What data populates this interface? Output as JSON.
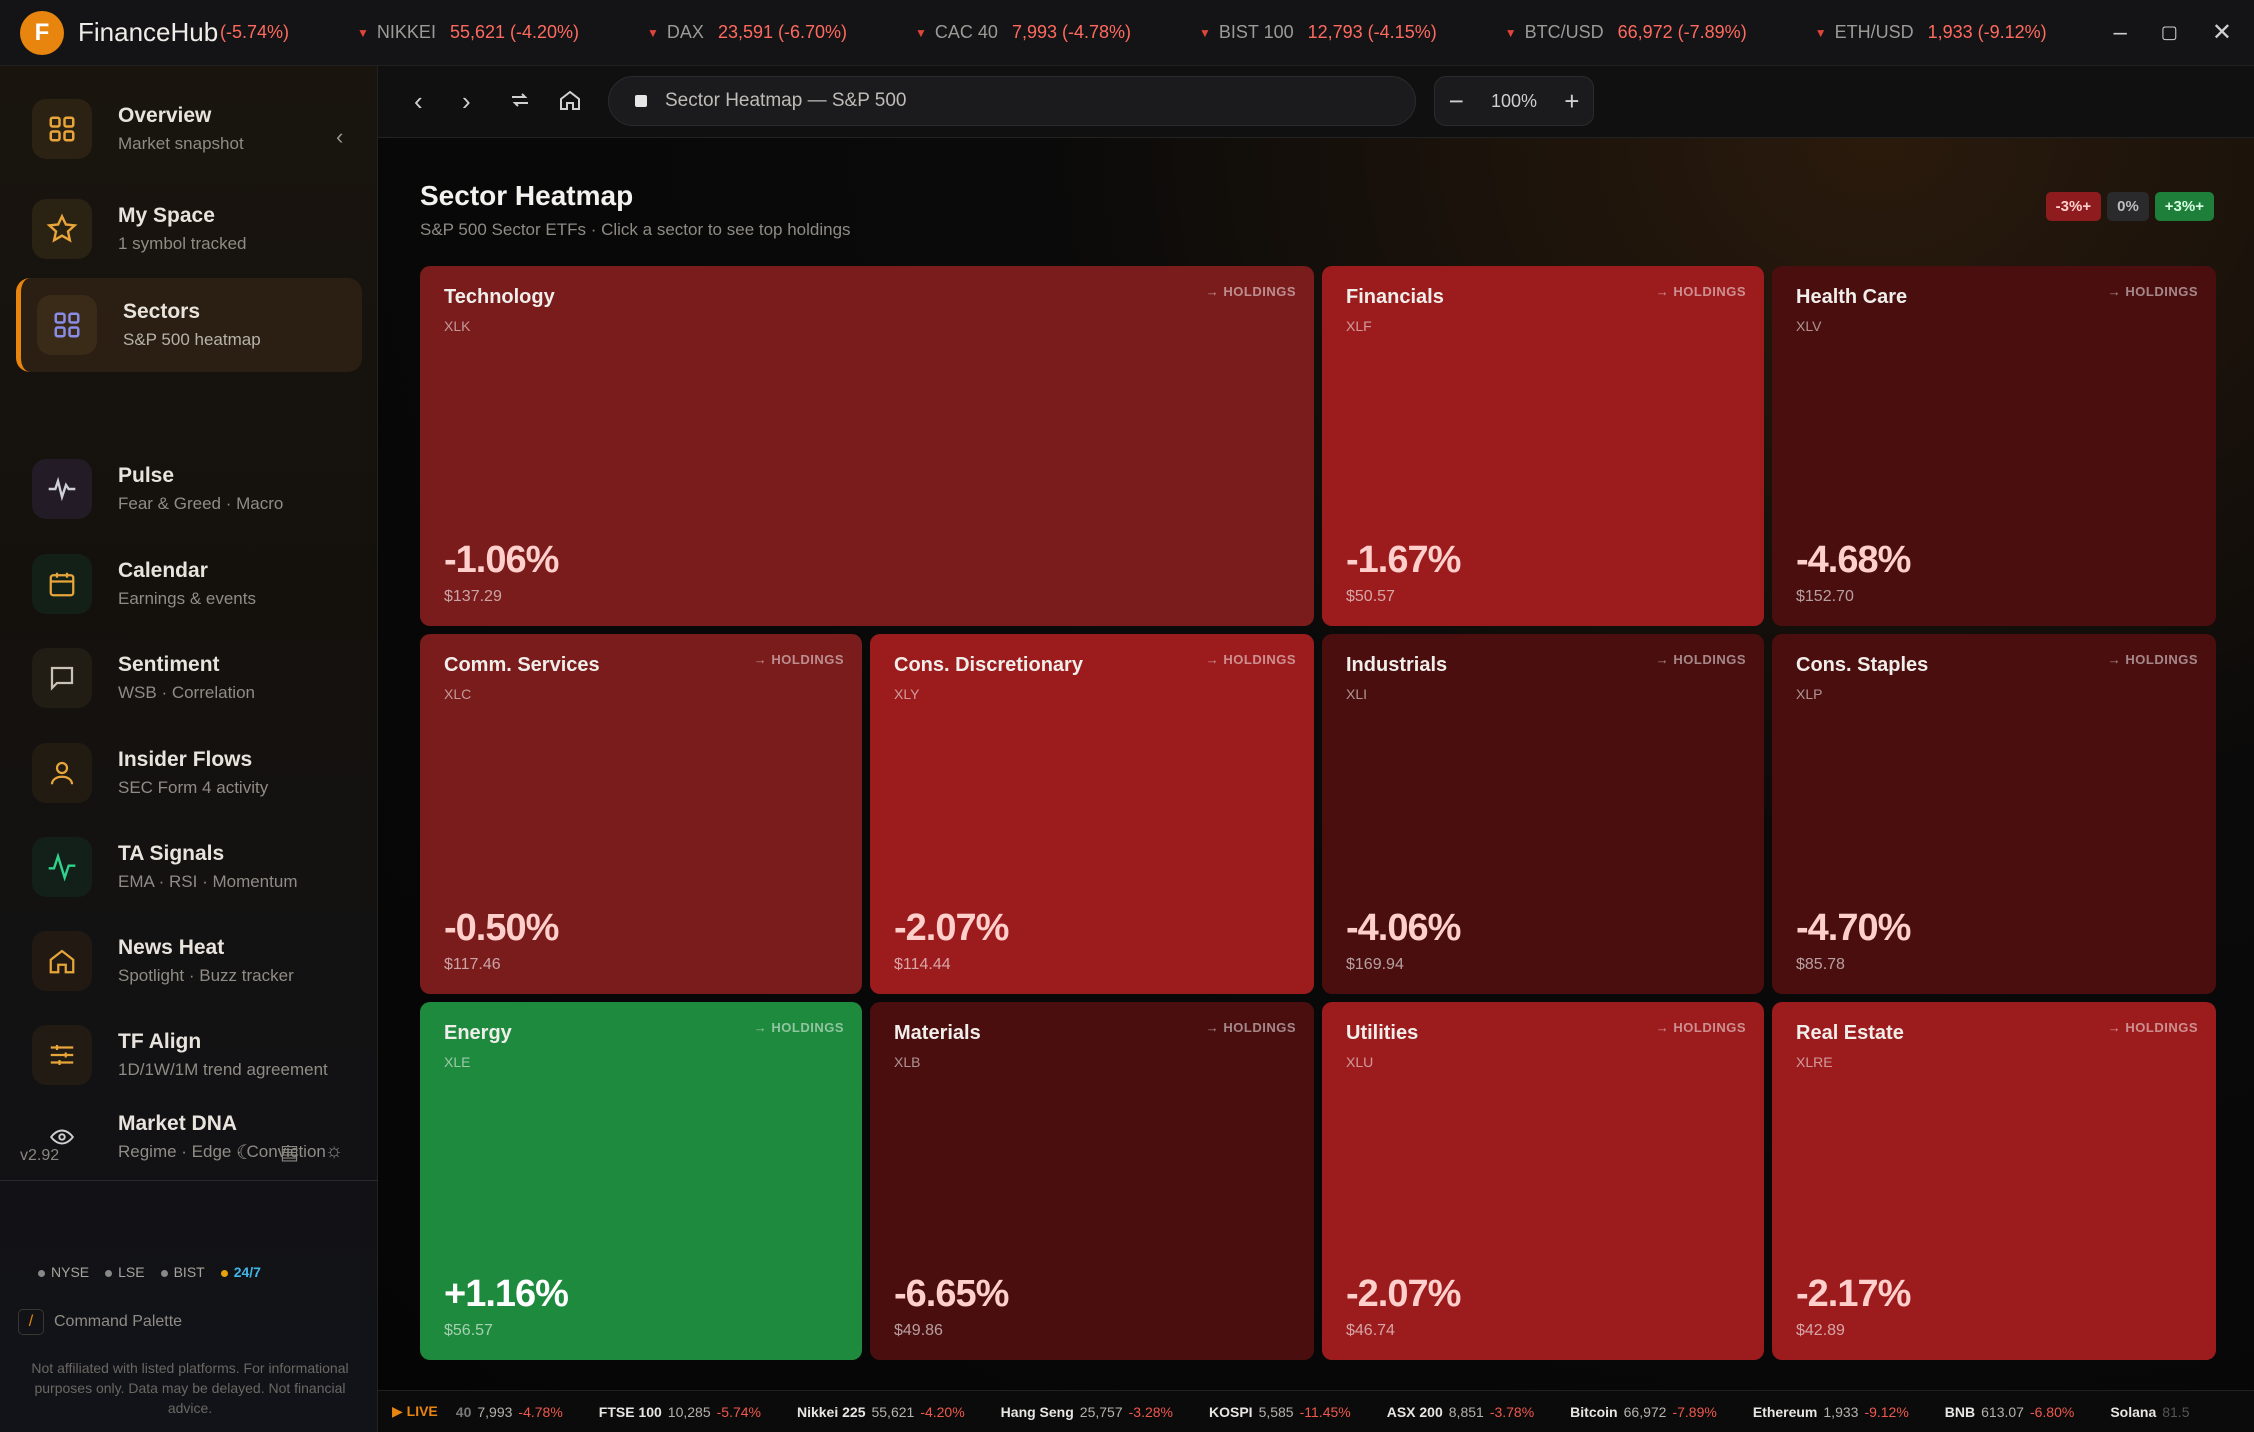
{
  "app": {
    "logo_letter": "F",
    "name": "FinanceHub"
  },
  "top_ticker": {
    "first_partial": "(-5.74%)",
    "items": [
      {
        "symbol": "NIKKEI",
        "value": "55,621 (-4.20%)"
      },
      {
        "symbol": "DAX",
        "value": "23,591 (-6.70%)"
      },
      {
        "symbol": "CAC 40",
        "value": "7,993 (-4.78%)"
      },
      {
        "symbol": "BIST 100",
        "value": "12,793 (-4.15%)"
      },
      {
        "symbol": "BTC/USD",
        "value": "66,972 (-7.89%)"
      },
      {
        "symbol": "ETH/USD",
        "value": "1,933 (-9.12%)"
      }
    ]
  },
  "sidebar": {
    "items": [
      {
        "title": "Overview",
        "sub": "Market snapshot"
      },
      {
        "title": "My Space",
        "sub": "1 symbol tracked"
      },
      {
        "title": "Sectors",
        "sub": "S&P 500 heatmap"
      },
      {
        "title": "Pulse",
        "sub": "Fear & Greed · Macro"
      },
      {
        "title": "Calendar",
        "sub": "Earnings & events"
      },
      {
        "title": "Sentiment",
        "sub": "WSB · Correlation"
      },
      {
        "title": "Insider Flows",
        "sub": "SEC Form 4 activity"
      },
      {
        "title": "TA Signals",
        "sub": "EMA · RSI · Momentum"
      },
      {
        "title": "News Heat",
        "sub": "Spotlight · Buzz tracker"
      },
      {
        "title": "TF Align",
        "sub": "1D/1W/1M trend agreement"
      },
      {
        "title": "Market DNA",
        "sub": "Regime · Edge · Conviction"
      }
    ],
    "version": "v2.92",
    "markets": [
      "NYSE",
      "LSE",
      "BIST",
      "24/7"
    ],
    "command_palette_key": "/",
    "command_palette_label": "Command Palette",
    "disclaimer": "Not affiliated with listed platforms. For informational purposes only. Data may be delayed. Not financial advice."
  },
  "toolbar": {
    "address": "Sector Heatmap — S&P 500",
    "zoom": "100%"
  },
  "page": {
    "title": "Sector Heatmap",
    "subtitle": "S&P 500 Sector ETFs · Click a sector to see top holdings",
    "legend": [
      "-3%+",
      "0%",
      "+3%+"
    ],
    "holdings_label": "→ HOLDINGS"
  },
  "sectors": [
    {
      "name": "Technology",
      "symbol": "XLK",
      "change": "-1.06%",
      "price": "$137.29",
      "pct": -1.06
    },
    {
      "name": "Financials",
      "symbol": "XLF",
      "change": "-1.67%",
      "price": "$50.57",
      "pct": -1.67
    },
    {
      "name": "Health Care",
      "symbol": "XLV",
      "change": "-4.68%",
      "price": "$152.70",
      "pct": -4.68
    },
    {
      "name": "Comm. Services",
      "symbol": "XLC",
      "change": "-0.50%",
      "price": "$117.46",
      "pct": -0.5
    },
    {
      "name": "Cons. Discretionary",
      "symbol": "XLY",
      "change": "-2.07%",
      "price": "$114.44",
      "pct": -2.07
    },
    {
      "name": "Industrials",
      "symbol": "XLI",
      "change": "-4.06%",
      "price": "$169.94",
      "pct": -4.06
    },
    {
      "name": "Cons. Staples",
      "symbol": "XLP",
      "change": "-4.70%",
      "price": "$85.78",
      "pct": -4.7
    },
    {
      "name": "Energy",
      "symbol": "XLE",
      "change": "+1.16%",
      "price": "$56.57",
      "pct": 1.16
    },
    {
      "name": "Materials",
      "symbol": "XLB",
      "change": "-6.65%",
      "price": "$49.86",
      "pct": -6.65
    },
    {
      "name": "Utilities",
      "symbol": "XLU",
      "change": "-2.07%",
      "price": "$46.74",
      "pct": -2.07
    },
    {
      "name": "Real Estate",
      "symbol": "XLRE",
      "change": "-2.17%",
      "price": "$42.89",
      "pct": -2.17
    }
  ],
  "bottom_ticker": {
    "live_label": "▶ LIVE",
    "first_partial": {
      "name": "40",
      "price": "7,993",
      "change": "-4.78%"
    },
    "items": [
      {
        "name": "FTSE 100",
        "price": "10,285",
        "change": "-5.74%"
      },
      {
        "name": "Nikkei 225",
        "price": "55,621",
        "change": "-4.20%"
      },
      {
        "name": "Hang Seng",
        "price": "25,757",
        "change": "-3.28%"
      },
      {
        "name": "KOSPI",
        "price": "5,585",
        "change": "-11.45%"
      },
      {
        "name": "ASX 200",
        "price": "8,851",
        "change": "-3.78%"
      },
      {
        "name": "Bitcoin",
        "price": "66,972",
        "change": "-7.89%"
      },
      {
        "name": "Ethereum",
        "price": "1,933",
        "change": "-9.12%"
      },
      {
        "name": "BNB",
        "price": "613.07",
        "change": "-6.80%"
      },
      {
        "name": "Solana",
        "price": "81.5",
        "change": ""
      }
    ]
  },
  "colors": {
    "accent": "#e8850f",
    "tile_red_light": "#9c1c1e",
    "tile_red_mid": "#7a1b1c",
    "tile_red_dark": "#4a0e0f",
    "tile_green": "#1e8a3e"
  }
}
